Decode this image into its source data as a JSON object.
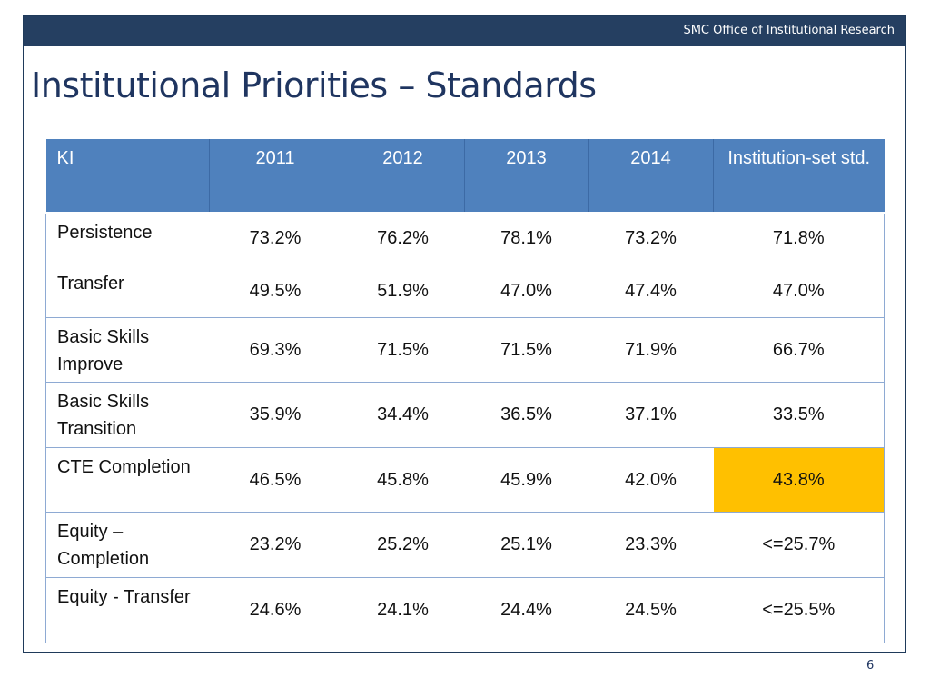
{
  "header": {
    "org": "SMC Office of Institutional Research"
  },
  "slide": {
    "title": "Institutional Priorities – Standards",
    "page_number": "6"
  },
  "table": {
    "columns": [
      "KI",
      "2011",
      "2012",
      "2013",
      "2014",
      "Institution-set std."
    ],
    "rows": [
      {
        "ki": "Persistence",
        "values": [
          "73.2%",
          "76.2%",
          "78.1%",
          "73.2%",
          "71.8%"
        ]
      },
      {
        "ki": "Transfer",
        "values": [
          "49.5%",
          "51.9%",
          "47.0%",
          "47.4%",
          "47.0%"
        ]
      },
      {
        "ki": "Basic Skills Improve",
        "values": [
          "69.3%",
          "71.5%",
          "71.5%",
          "71.9%",
          "66.7%"
        ]
      },
      {
        "ki": "Basic Skills Transition",
        "values": [
          "35.9%",
          "34.4%",
          "36.5%",
          "37.1%",
          "33.5%"
        ]
      },
      {
        "ki": "CTE Completion",
        "values": [
          "46.5%",
          "45.8%",
          "45.9%",
          "42.0%",
          "43.8%"
        ]
      },
      {
        "ki": "Equity – Completion",
        "values": [
          "23.2%",
          "25.2%",
          "25.1%",
          "23.3%",
          "<=25.7%"
        ]
      },
      {
        "ki": "Equity - Transfer",
        "values": [
          "24.6%",
          "24.1%",
          "24.4%",
          "24.5%",
          "<=25.5%"
        ]
      }
    ],
    "highlight_color": "#ffc000",
    "header_color": "#4f81bd"
  }
}
